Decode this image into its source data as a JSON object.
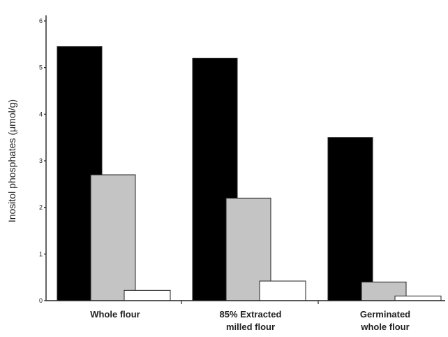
{
  "chart_data": {
    "type": "bar",
    "title": "",
    "xlabel": "",
    "ylabel": "Inositol phosphates (μmol/g)",
    "ylim": [
      0,
      6
    ],
    "yticks": [
      "0",
      "1",
      "2",
      "3",
      "4",
      "5",
      "6"
    ],
    "grid": false,
    "legend": "none",
    "categories": [
      [
        "Whole flour"
      ],
      [
        "85% Extracted",
        "milled flour"
      ],
      [
        "Germinated",
        "whole flour"
      ]
    ],
    "series": [
      {
        "color": "#000000",
        "values": [
          5.45,
          5.2,
          3.5
        ]
      },
      {
        "color": "#c4c4c4",
        "values": [
          2.7,
          2.2,
          0.4
        ]
      },
      {
        "color": "#ffffff",
        "values": [
          0.22,
          0.42,
          0.1
        ]
      }
    ]
  }
}
